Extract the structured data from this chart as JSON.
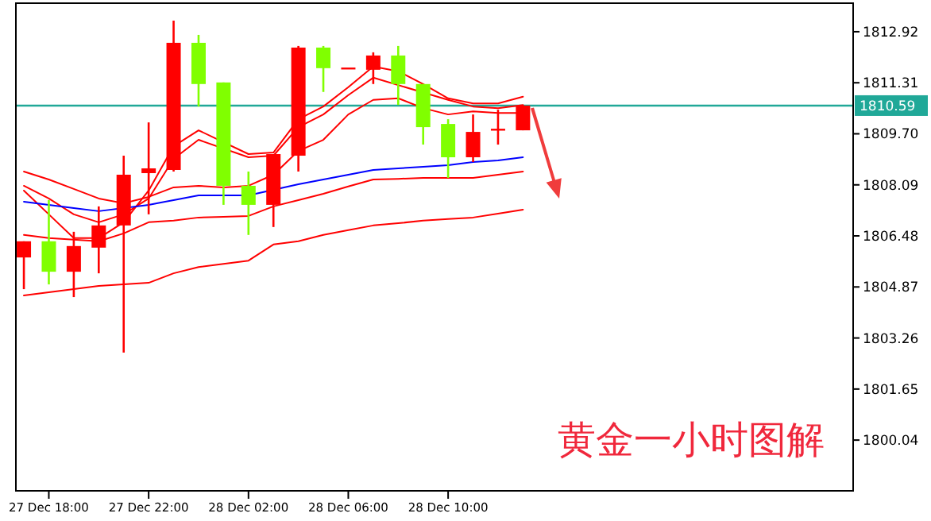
{
  "chart_data": {
    "type": "candlestick",
    "categories": [
      null,
      "27 Dec 18:00",
      null,
      null,
      null,
      "27 Dec 22:00",
      null,
      null,
      null,
      "28 Dec 02:00",
      null,
      null,
      null,
      "28 Dec 06:00",
      null,
      null,
      null,
      "28 Dec 10:00",
      null,
      null,
      null,
      null,
      null,
      null,
      null,
      null,
      null,
      null,
      null,
      null,
      null,
      null,
      null,
      null
    ],
    "ohlc": [
      [
        1805.8,
        1806.31,
        1804.8,
        1806.31
      ],
      [
        1806.31,
        1807.61,
        1804.95,
        1805.35
      ],
      [
        1805.35,
        1806.61,
        1804.55,
        1806.16
      ],
      [
        1806.11,
        1807.41,
        1805.3,
        1806.81
      ],
      [
        1806.81,
        1809.01,
        1802.8,
        1808.41
      ],
      [
        1808.46,
        1810.06,
        1807.16,
        1808.61
      ],
      [
        1808.56,
        1813.27,
        1808.51,
        1812.57
      ],
      [
        1812.57,
        1812.82,
        1810.56,
        1811.27
      ],
      [
        1811.32,
        1811.32,
        1807.46,
        1808.06
      ],
      [
        1808.06,
        1808.51,
        1806.51,
        1807.46
      ],
      [
        1807.46,
        1809.06,
        1806.76,
        1809.06
      ],
      [
        1809.01,
        1812.47,
        1808.51,
        1812.42
      ],
      [
        1812.42,
        1812.47,
        1811.02,
        1811.77
      ],
      [
        1811.79,
        1811.79,
        1811.79,
        1811.79
      ],
      [
        1811.72,
        1812.27,
        1811.27,
        1812.17
      ],
      [
        1812.17,
        1812.47,
        1810.61,
        1811.27
      ],
      [
        1811.27,
        1811.27,
        1809.36,
        1809.91
      ],
      [
        1810.01,
        1810.16,
        1808.31,
        1808.96
      ],
      [
        1808.96,
        1810.31,
        1808.81,
        1809.76
      ],
      [
        1809.81,
        1810.46,
        1809.36,
        1809.86
      ],
      [
        1809.81,
        1810.61,
        1809.81,
        1810.59
      ],
      null,
      null,
      null,
      null,
      null,
      null,
      null,
      null,
      null,
      null,
      null,
      null,
      null
    ],
    "colors": [
      "#ff0000",
      "#80ff00",
      "#ff0000",
      "#ff0000",
      "#ff0000",
      "#ff0000",
      "#ff0000",
      "#80ff00",
      "#80ff00",
      "#80ff00",
      "#ff0000",
      "#ff0000",
      "#80ff00",
      "#ff0000",
      "#ff0000",
      "#80ff00",
      "#80ff00",
      "#80ff00",
      "#ff0000",
      "#ff0000",
      "#ff0000",
      null,
      null,
      null,
      null,
      null,
      null,
      null,
      null,
      null,
      null,
      null,
      null,
      null
    ],
    "series": [
      {
        "type": "line",
        "color": "#ff0000",
        "values": [
          1807.91,
          1807.16,
          1806.41,
          1806.41,
          1806.91,
          1807.91,
          1809.31,
          1809.81,
          null,
          1809.06,
          1809.11,
          1810.16,
          1810.56,
          1811.17,
          1811.82,
          1811.67,
          1811.27,
          1810.82,
          1810.66,
          1810.66,
          1810.87,
          null,
          null,
          null,
          null,
          null,
          null,
          null,
          null,
          null,
          null,
          null,
          null,
          null
        ]
      },
      {
        "type": "line",
        "color": "#ff0000",
        "values": [
          1808.06,
          1807.66,
          1807.16,
          1806.91,
          1807.16,
          1807.66,
          1808.91,
          1809.51,
          null,
          1808.96,
          1809.01,
          1809.91,
          1810.31,
          1810.92,
          1811.47,
          null,
          null,
          1810.77,
          1810.56,
          1810.51,
          1810.61,
          null,
          null,
          null,
          null,
          null,
          null,
          null,
          null,
          null,
          null,
          null,
          null,
          null
        ]
      },
      {
        "type": "line",
        "color": "#ff0000",
        "values": [
          1808.51,
          1808.26,
          1807.96,
          1807.66,
          1807.51,
          1807.71,
          1808.01,
          1808.06,
          1808.01,
          1808.06,
          1808.41,
          1809.16,
          1809.51,
          1810.31,
          1810.77,
          1810.82,
          1810.51,
          1810.31,
          1810.41,
          1810.36,
          1810.36,
          null,
          null,
          null,
          null,
          null,
          null,
          null,
          null,
          null,
          null,
          null,
          null,
          null
        ]
      },
      {
        "type": "line",
        "color": "#0000ff",
        "values": [
          1807.56,
          1807.46,
          1807.36,
          1807.26,
          null,
          1807.46,
          1807.61,
          1807.76,
          1807.76,
          1807.76,
          null,
          1808.11,
          1808.26,
          1808.41,
          1808.56,
          1808.61,
          1808.66,
          1808.71,
          1808.81,
          1808.86,
          1808.96,
          null,
          null,
          null,
          null,
          null,
          null,
          null,
          null,
          null,
          null,
          null,
          null,
          null
        ]
      },
      {
        "type": "line",
        "color": "#ff0000",
        "values": [
          1806.51,
          1806.41,
          1806.36,
          1806.31,
          1806.56,
          1806.91,
          1806.96,
          1807.06,
          1807.08,
          1807.11,
          1807.41,
          1807.61,
          1807.81,
          1808.04,
          1808.26,
          1808.28,
          1808.31,
          1808.31,
          1808.31,
          1808.41,
          1808.51,
          null,
          null,
          null,
          null,
          null,
          null,
          null,
          null,
          null,
          null,
          null,
          null,
          null
        ]
      },
      {
        "type": "line",
        "color": "#ff0000",
        "values": [
          1804.6,
          1804.7,
          1804.8,
          1804.9,
          1804.95,
          1805.0,
          1805.3,
          1805.5,
          1805.6,
          1805.7,
          1806.21,
          1806.31,
          1806.51,
          1806.66,
          1806.81,
          1806.88,
          1806.96,
          1807.01,
          1807.06,
          1807.18,
          1807.31,
          null,
          null,
          null,
          null,
          null,
          null,
          null,
          null,
          null,
          null,
          null,
          null,
          null
        ]
      }
    ],
    "ylim": [
      1798.44,
      1813.82
    ],
    "yticks": [
      1812.92,
      1811.31,
      {
        "value": 1809.7,
        "label": "1809.70"
      },
      1808.09,
      1806.48,
      1804.87,
      1803.26,
      1801.65,
      1800.04
    ],
    "ref_lines": [
      {
        "axis": "y",
        "value": 1810.59,
        "label": "1810.59",
        "color": "#20a898"
      }
    ],
    "annotations": [
      "黄金一小时图解"
    ]
  }
}
